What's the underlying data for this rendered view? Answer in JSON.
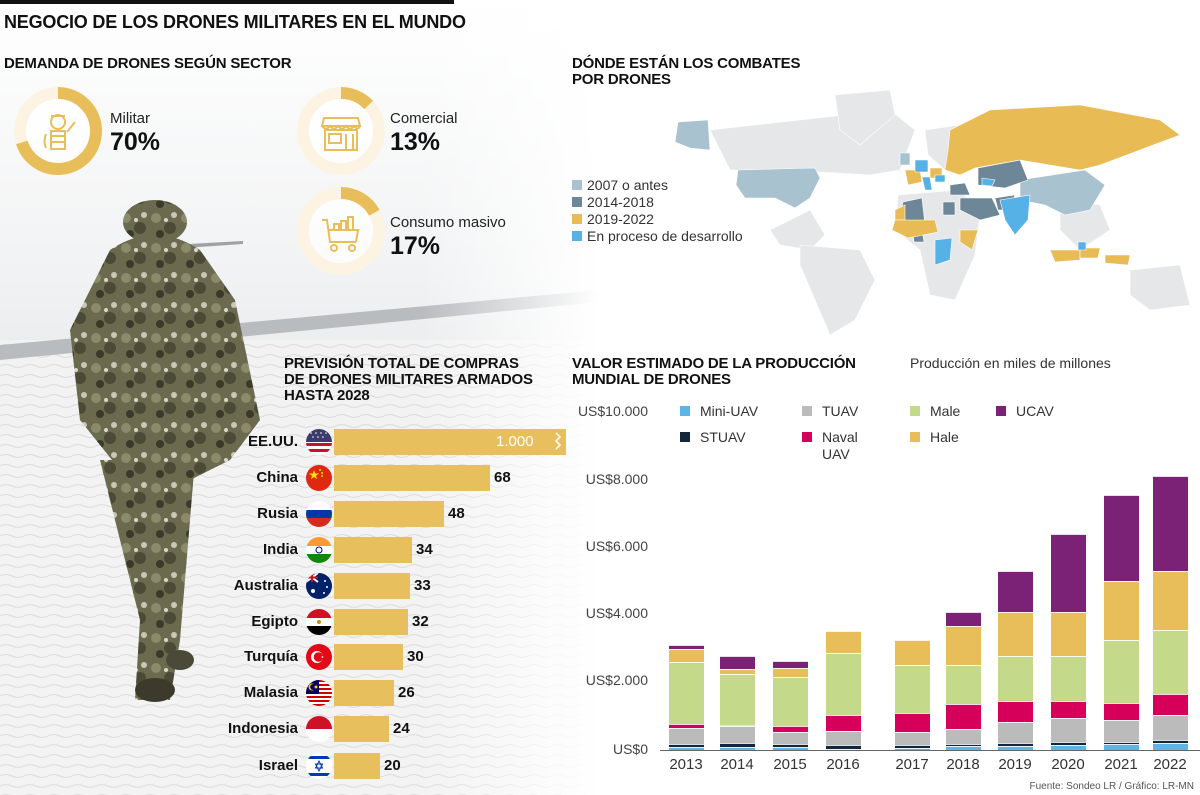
{
  "header": {
    "title": "NEGOCIO DE LOS DRONES MILITARES EN EL MUNDO"
  },
  "demand": {
    "title": "DEMANDA DE DRONES SEGÚN SECTOR",
    "items": [
      {
        "label": "Militar",
        "value": "70%",
        "percent": 70,
        "icon": "soldier-icon"
      },
      {
        "label": "Comercial",
        "value": "13%",
        "percent": 13,
        "icon": "storefront-icon"
      },
      {
        "label": "Consumo masivo",
        "value": "17%",
        "percent": 17,
        "icon": "shopping-cart-icon"
      }
    ],
    "colors": {
      "ring": "#E8BE5A",
      "track": "#FDF3E2"
    }
  },
  "map": {
    "title_line1": "DÓNDE ESTÁN LOS COMBATES",
    "title_line2": "POR DRONES",
    "legend": [
      {
        "label": "2007 o antes",
        "color": "#A9C2CF"
      },
      {
        "label": "2014-2018",
        "color": "#6E8798"
      },
      {
        "label": "2019-2022",
        "color": "#E8BB55"
      },
      {
        "label": "En proceso de desarrollo",
        "color": "#56B2E6"
      }
    ]
  },
  "purchases": {
    "title_line1": "PREVISIÓN TOTAL DE COMPRAS",
    "title_line2": "DE DRONES MILITARES ARMADOS",
    "title_line3": "HASTA 2028",
    "rows": [
      {
        "country": "EE.UU.",
        "value": "1.000",
        "flag": "usa-flag-icon"
      },
      {
        "country": "China",
        "value": "68",
        "flag": "china-flag-icon"
      },
      {
        "country": "Rusia",
        "value": "48",
        "flag": "russia-flag-icon"
      },
      {
        "country": "India",
        "value": "34",
        "flag": "india-flag-icon"
      },
      {
        "country": "Australia",
        "value": "33",
        "flag": "australia-flag-icon"
      },
      {
        "country": "Egipto",
        "value": "32",
        "flag": "egypt-flag-icon"
      },
      {
        "country": "Turquía",
        "value": "30",
        "flag": "turkey-flag-icon"
      },
      {
        "country": "Malasia",
        "value": "26",
        "flag": "malaysia-flag-icon"
      },
      {
        "country": "Indonesia",
        "value": "24",
        "flag": "indonesia-flag-icon"
      },
      {
        "country": "Israel",
        "value": "20",
        "flag": "israel-flag-icon"
      }
    ]
  },
  "production": {
    "title_line1": "VALOR ESTIMADO DE LA PRODUCCIÓN",
    "title_line2": "MUNDIAL DE DRONES",
    "unit_note": "Producción en miles de millones",
    "y_ticks": [
      "US$10.000",
      "US$8.000",
      "US$6.000",
      "US$4.000",
      "US$2.000",
      "US$0"
    ],
    "legend": [
      {
        "label": "Mini-UAV",
        "color": "#5DB5E5"
      },
      {
        "label": "STUAV",
        "color": "#13263A"
      },
      {
        "label": "TUAV",
        "color": "#BBBBBB"
      },
      {
        "label": "Naval UAV",
        "color": "#D6005A"
      },
      {
        "label": "Male",
        "color": "#C5D98A"
      },
      {
        "label": "Hale",
        "color": "#E8BE5A"
      },
      {
        "label": "UCAV",
        "color": "#7B2277"
      }
    ]
  },
  "chart_data": [
    {
      "type": "pie",
      "title": "DEMANDA DE DRONES SEGÚN SECTOR",
      "categories": [
        "Militar",
        "Comercial",
        "Consumo masivo"
      ],
      "values": [
        70,
        13,
        17
      ],
      "unit": "%"
    },
    {
      "type": "bar",
      "orientation": "horizontal",
      "title": "PREVISIÓN TOTAL DE COMPRAS DE DRONES MILITARES ARMADOS HASTA 2028",
      "categories": [
        "EE.UU.",
        "China",
        "Rusia",
        "India",
        "Australia",
        "Egipto",
        "Turquía",
        "Malasia",
        "Indonesia",
        "Israel"
      ],
      "values": [
        1000,
        68,
        48,
        34,
        33,
        32,
        30,
        26,
        24,
        20
      ],
      "annotations": [
        "EE.UU. bar truncated with break mark"
      ]
    },
    {
      "type": "bar",
      "stacked": true,
      "title": "VALOR ESTIMADO DE LA PRODUCCIÓN MUNDIAL DE DRONES",
      "subtitle": "Producción en miles de millones",
      "xlabel": "",
      "ylabel": "US$",
      "ylim": [
        0,
        10000
      ],
      "y_ticks": [
        0,
        2000,
        4000,
        6000,
        8000,
        10000
      ],
      "legend_position": "top",
      "categories": [
        "2013",
        "2014",
        "2015",
        "2016",
        "2017",
        "2018",
        "2019",
        "2020",
        "2021",
        "2022"
      ],
      "series": [
        {
          "name": "Mini-UAV",
          "color": "#5DB5E5",
          "values": [
            90,
            100,
            80,
            30,
            60,
            120,
            130,
            160,
            170,
            210
          ]
        },
        {
          "name": "STUAV",
          "color": "#13263A",
          "values": [
            100,
            100,
            100,
            120,
            90,
            60,
            70,
            70,
            80,
            100
          ]
        },
        {
          "name": "TUAV",
          "color": "#BBBBBB",
          "values": [
            450,
            500,
            350,
            400,
            370,
            450,
            620,
            710,
            630,
            730
          ]
        },
        {
          "name": "Naval UAV",
          "color": "#D6005A",
          "values": [
            120,
            40,
            180,
            480,
            590,
            730,
            620,
            510,
            510,
            620
          ]
        },
        {
          "name": "Male",
          "color": "#C5D98A",
          "values": [
            1840,
            1520,
            1470,
            1840,
            1400,
            1150,
            1350,
            1350,
            1870,
            1910
          ]
        },
        {
          "name": "Hale",
          "color": "#E8BE5A",
          "values": [
            400,
            150,
            250,
            650,
            750,
            1160,
            1310,
            1290,
            1750,
            1740
          ]
        },
        {
          "name": "UCAV",
          "color": "#7B2277",
          "values": [
            120,
            390,
            200,
            0,
            0,
            430,
            1210,
            2320,
            2570,
            2830
          ]
        }
      ]
    }
  ],
  "footer": {
    "source": "Fuente: Sondeo LR  / Gráfico: LR-MN"
  }
}
